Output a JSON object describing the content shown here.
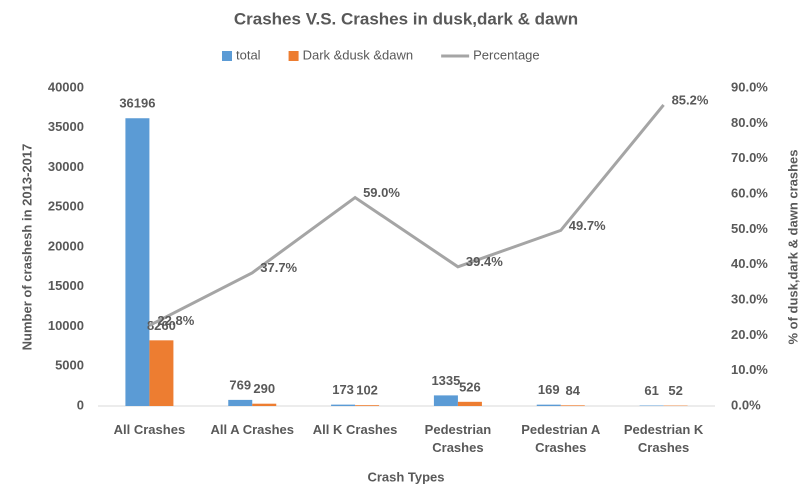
{
  "chart_data": {
    "type": "bar",
    "title": "Crashes V.S. Crashes in dusk,dark & dawn",
    "x_label": "Crash Types",
    "y_label": "Number of crashesh in 2013-2017",
    "y2_label": "% of dusk,dark & dawn crashes",
    "categories": [
      "All Crashes",
      "All A Crashes",
      "All K Crashes",
      "Pedestrian Crashes",
      "Pedestrian A Crashes",
      "Pedestrian K Crashes"
    ],
    "series": [
      {
        "name": "total",
        "type": "bar",
        "color": "#5b9bd5",
        "values": [
          36196,
          769,
          173,
          1335,
          169,
          61
        ]
      },
      {
        "name": "Dark &dusk &dawn",
        "type": "bar",
        "color": "#ed7d31",
        "values": [
          8260,
          290,
          102,
          526,
          84,
          52
        ]
      },
      {
        "name": "Percentage",
        "type": "line",
        "axis": "y2",
        "color": "#a5a5a5",
        "values": [
          22.8,
          37.7,
          59.0,
          39.4,
          49.7,
          85.2
        ],
        "value_labels": [
          "22.8%",
          "37.7%",
          "59.0%",
          "39.4%",
          "49.7%",
          "85.2%"
        ]
      }
    ],
    "ylim": [
      0,
      40000
    ],
    "yticks": [
      0,
      5000,
      10000,
      15000,
      20000,
      25000,
      30000,
      35000,
      40000
    ],
    "y2lim": [
      0,
      90
    ],
    "y2ticks": [
      {
        "value": 0,
        "label": "0.0%"
      },
      {
        "value": 10,
        "label": "10.0%"
      },
      {
        "value": 20,
        "label": "20.0%"
      },
      {
        "value": 30,
        "label": "30.0%"
      },
      {
        "value": 40,
        "label": "40.0%"
      },
      {
        "value": 50,
        "label": "50.0%"
      },
      {
        "value": 60,
        "label": "60.0%"
      },
      {
        "value": 70,
        "label": "70.0%"
      },
      {
        "value": 80,
        "label": "80.0%"
      },
      {
        "value": 90,
        "label": "90.0%"
      }
    ],
    "legend": "top",
    "grid": false
  }
}
